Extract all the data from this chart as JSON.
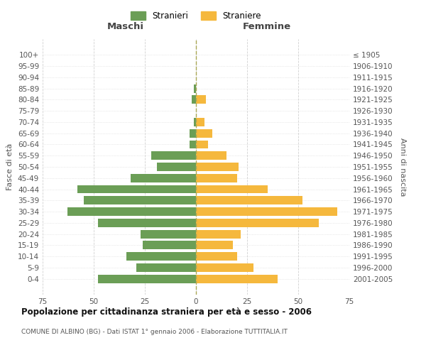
{
  "age_groups": [
    "100+",
    "95-99",
    "90-94",
    "85-89",
    "80-84",
    "75-79",
    "70-74",
    "65-69",
    "60-64",
    "55-59",
    "50-54",
    "45-49",
    "40-44",
    "35-39",
    "30-34",
    "25-29",
    "20-24",
    "15-19",
    "10-14",
    "5-9",
    "0-4"
  ],
  "birth_years": [
    "≤ 1905",
    "1906-1910",
    "1911-1915",
    "1916-1920",
    "1921-1925",
    "1926-1930",
    "1931-1935",
    "1936-1940",
    "1941-1945",
    "1946-1950",
    "1951-1955",
    "1956-1960",
    "1961-1965",
    "1966-1970",
    "1971-1975",
    "1976-1980",
    "1981-1985",
    "1986-1990",
    "1991-1995",
    "1996-2000",
    "2001-2005"
  ],
  "maschi": [
    0,
    0,
    0,
    1,
    2,
    0,
    1,
    3,
    3,
    22,
    19,
    32,
    58,
    55,
    63,
    48,
    27,
    26,
    34,
    29,
    48
  ],
  "femmine": [
    0,
    0,
    0,
    0,
    5,
    0,
    4,
    8,
    6,
    15,
    21,
    20,
    35,
    52,
    69,
    60,
    22,
    18,
    20,
    28,
    40
  ],
  "maschi_color": "#6b9e56",
  "femmine_color": "#f5b83d",
  "title": "Popolazione per cittadinanza straniera per età e sesso - 2006",
  "subtitle": "COMUNE DI ALBINO (BG) - Dati ISTAT 1° gennaio 2006 - Elaborazione TUTTITALIA.IT",
  "xlabel_left": "Maschi",
  "xlabel_right": "Femmine",
  "ylabel_left": "Fasce di età",
  "ylabel_right": "Anni di nascita",
  "legend_maschi": "Stranieri",
  "legend_femmine": "Straniere",
  "xlim": 75,
  "background_color": "#ffffff",
  "grid_color": "#cccccc",
  "bar_height": 0.75
}
